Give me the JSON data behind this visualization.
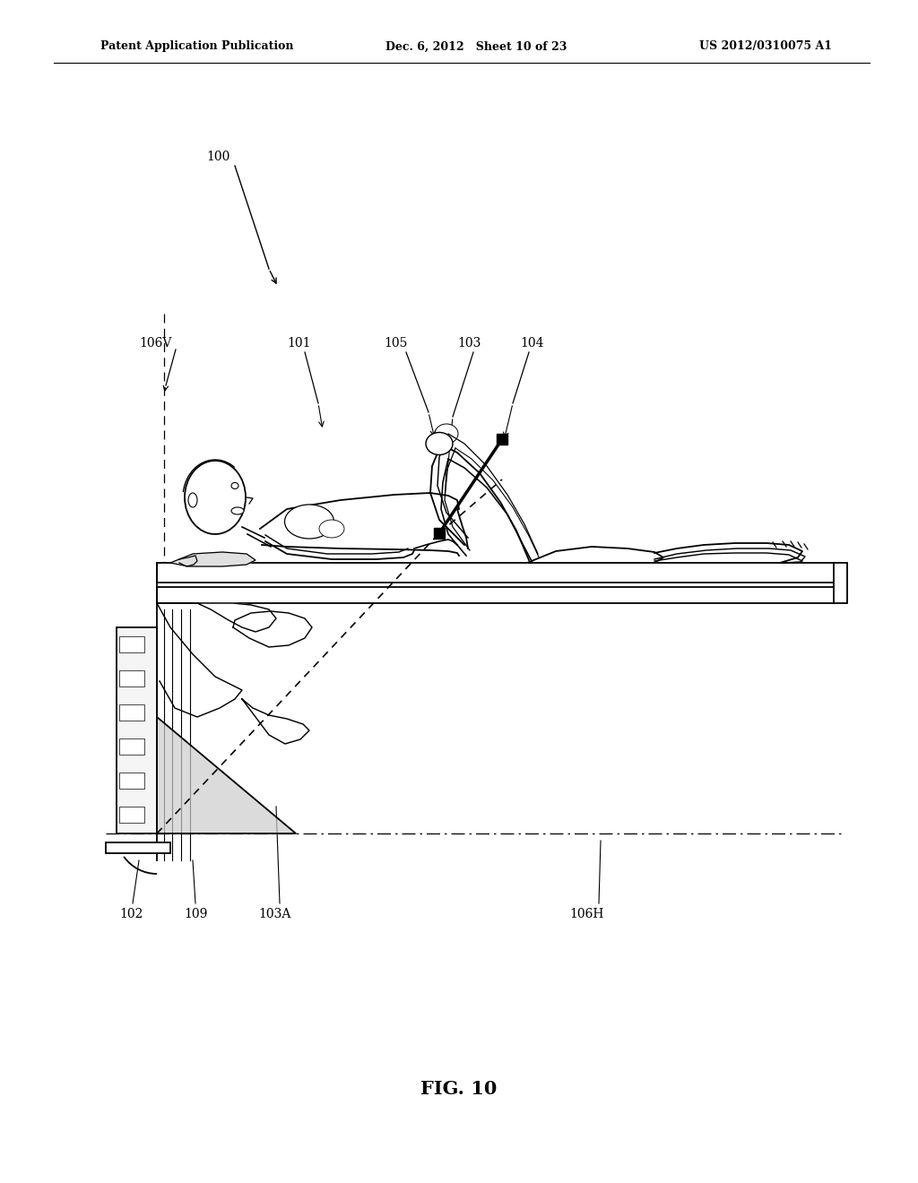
{
  "bg_color": "#ffffff",
  "header_left": "Patent Application Publication",
  "header_mid": "Dec. 6, 2012   Sheet 10 of 23",
  "header_right": "US 2012/0310075 A1",
  "fig_label": "FIG. 10"
}
